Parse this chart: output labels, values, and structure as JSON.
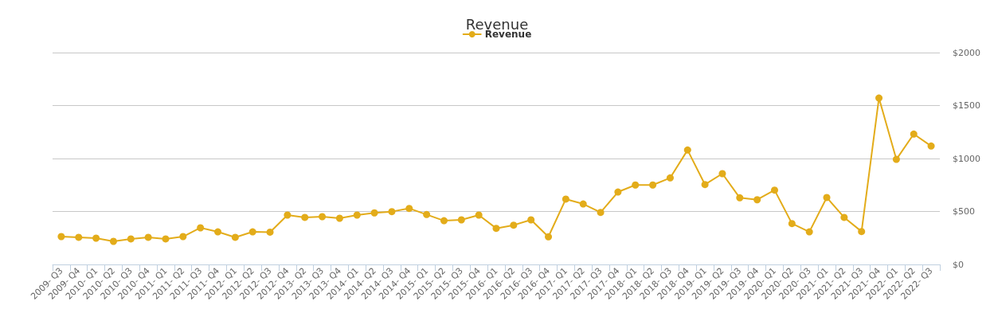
{
  "chart_data": {
    "type": "line",
    "title": "Revenue",
    "categories": [
      "2009- Q3",
      "2009- Q4",
      "2010- Q1",
      "2010- Q2",
      "2010- Q3",
      "2010- Q4",
      "2011- Q1",
      "2011- Q2",
      "2011- Q3",
      "2011- Q4",
      "2012- Q1",
      "2012- Q2",
      "2012- Q3",
      "2012- Q4",
      "2013- Q2",
      "2013- Q3",
      "2013- Q4",
      "2014- Q1",
      "2014- Q2",
      "2014- Q3",
      "2014- Q4",
      "2015- Q1",
      "2015- Q2",
      "2015- Q3",
      "2015- Q4",
      "2016- Q1",
      "2016- Q2",
      "2016- Q3",
      "2016- Q4",
      "2017- Q1",
      "2017- Q2",
      "2017- Q3",
      "2017- Q4",
      "2018- Q1",
      "2018- Q2",
      "2018- Q3",
      "2018- Q4",
      "2019- Q1",
      "2019- Q2",
      "2019- Q3",
      "2019- Q4",
      "2020- Q1",
      "2020- Q2",
      "2020- Q3",
      "2021- Q1",
      "2021- Q2",
      "2021- Q3",
      "2021- Q4",
      "2022- Q1",
      "2022- Q2",
      "2022- Q3"
    ],
    "series": [
      {
        "name": "Revenue",
        "color": "#e3ac1a",
        "values": [
          263,
          256,
          248,
          218,
          241,
          256,
          241,
          263,
          346,
          308,
          256,
          308,
          305,
          466,
          444,
          451,
          436,
          466,
          487,
          499,
          529,
          471,
          413,
          421,
          466,
          341,
          371,
          421,
          261,
          617,
          571,
          491,
          684,
          750,
          750,
          817,
          1080,
          754,
          857,
          629,
          611,
          702,
          386,
          308,
          632,
          444,
          311,
          1571,
          992,
          1231,
          1118
        ]
      }
    ],
    "ylim": [
      0,
      2000
    ],
    "yticks": [
      {
        "value": 0,
        "label": "$0"
      },
      {
        "value": 500,
        "label": "$500"
      },
      {
        "value": 1000,
        "label": "$1000"
      },
      {
        "value": 1500,
        "label": "$1500"
      },
      {
        "value": 2000,
        "label": "$2000"
      }
    ],
    "grid": "y",
    "legend": "top",
    "marker": "circle",
    "line_style": "solid"
  }
}
